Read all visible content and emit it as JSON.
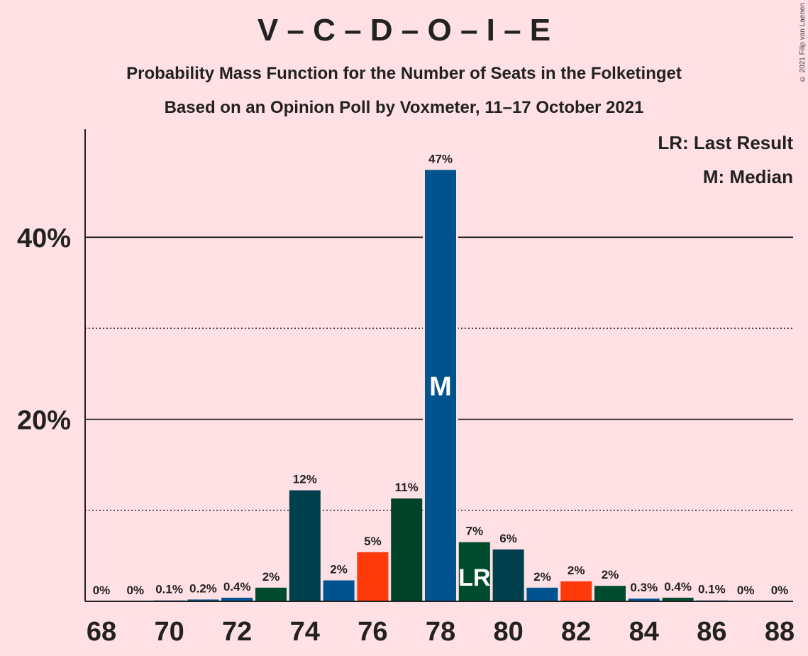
{
  "header": {
    "title": "V – C – D – O – I – E",
    "subtitle": "Probability Mass Function for the Number of Seats in the Folketinget",
    "subtitle2": "Based on an Opinion Poll by Voxmeter, 11–17 October 2021",
    "copyright": "© 2021 Filip van Laenen"
  },
  "legend": {
    "lr": "LR: Last Result",
    "m": "M: Median",
    "placement": "top-right"
  },
  "chart_data": {
    "type": "bar",
    "title": "V – C – D – O – I – E",
    "xlabel": "",
    "ylabel": "",
    "x": [
      68,
      69,
      70,
      71,
      72,
      73,
      74,
      75,
      76,
      77,
      78,
      79,
      80,
      81,
      82,
      83,
      84,
      85,
      86,
      87,
      88
    ],
    "values": [
      0,
      0,
      0.1,
      0.2,
      0.4,
      1.5,
      12.2,
      2.3,
      5.4,
      11.3,
      47.4,
      6.5,
      5.7,
      1.5,
      2.2,
      1.7,
      0.3,
      0.4,
      0.1,
      0,
      0
    ],
    "labels": [
      "0%",
      "0%",
      "0.1%",
      "0.2%",
      "0.4%",
      "2%",
      "12%",
      "2%",
      "5%",
      "11%",
      "47%",
      "7%",
      "6%",
      "2%",
      "2%",
      "2%",
      "0.3%",
      "0.4%",
      "0.1%",
      "0%",
      "0%"
    ],
    "colors": [
      "#00538f",
      "#00538f",
      "#00538f",
      "#00538f",
      "#00538f",
      "#004b2d",
      "#003f4e",
      "#00538f",
      "#ff3a0a",
      "#004228",
      "#00538f",
      "#004b2d",
      "#003f4e",
      "#00538f",
      "#ff3a0a",
      "#004b2d",
      "#00538f",
      "#004b2d",
      "#00538f",
      "#00538f",
      "#00538f"
    ],
    "xticks": [
      68,
      70,
      72,
      74,
      76,
      78,
      80,
      82,
      84,
      86,
      88
    ],
    "yticks": [
      {
        "value": 20,
        "label": "20%"
      },
      {
        "value": 40,
        "label": "40%"
      }
    ],
    "minor_gridlines": [
      10,
      30
    ],
    "ylim": [
      0,
      52
    ],
    "median": 78,
    "median_label": "M",
    "last_result": 79,
    "last_result_label": "LR",
    "grid": true
  }
}
